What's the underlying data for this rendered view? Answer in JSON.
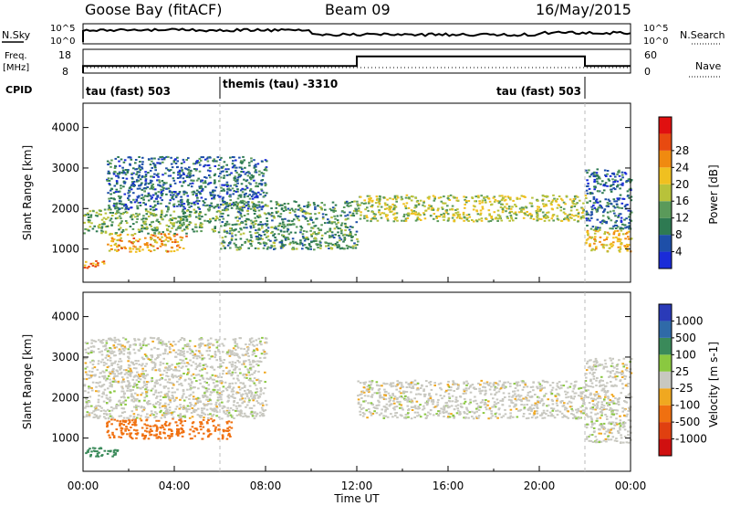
{
  "header": {
    "radar_title": "Goose Bay (fitACF)",
    "beam": "Beam 09",
    "date": "16/May/2015"
  },
  "noise_panel": {
    "left_label": "N.Sky",
    "right_label": "N.Search",
    "tick_top": "10^5",
    "tick_bottom": "10^0",
    "right_tick_top": "10^5",
    "right_tick_bottom": "10^0"
  },
  "freq_panel": {
    "left_label_line1": "Freq.",
    "left_label_line2": "[MHz]",
    "tick_top": "18",
    "tick_bottom": "8",
    "right_label": "Nave",
    "right_tick_top": "60",
    "right_tick_bottom": "0"
  },
  "cpid": {
    "label": "CPID",
    "segments": [
      {
        "start_hour": 0,
        "text": "tau (fast) 503"
      },
      {
        "start_hour": 6,
        "text": "themis (tau) -3310"
      },
      {
        "start_hour": 22,
        "text": "tau (fast) 503",
        "align": "end"
      }
    ]
  },
  "axes": {
    "x_label": "Time UT",
    "x_ticks": [
      "00:00",
      "04:00",
      "08:00",
      "12:00",
      "16:00",
      "20:00",
      "00:00"
    ],
    "y_label": "Slant Range [km]",
    "y_ticks": [
      "1000",
      "2000",
      "3000",
      "4000"
    ]
  },
  "colorbars": {
    "power": {
      "label": "Power [dB]",
      "ticks": [
        "4",
        "8",
        "12",
        "16",
        "20",
        "24",
        "28"
      ],
      "colors": [
        "#1a2bd8",
        "#1e4fa8",
        "#2e7a52",
        "#5a9a5a",
        "#b8c23a",
        "#f0c020",
        "#f08a10",
        "#e84a10",
        "#e01010"
      ]
    },
    "velocity": {
      "label": "Velocity [m s-1]",
      "ticks": [
        "1000",
        "500",
        "100",
        "25",
        "-25",
        "-100",
        "-500",
        "-1000"
      ],
      "colors": [
        "#2a3ab8",
        "#2f6aa8",
        "#3a8a5a",
        "#8ac840",
        "#c8c8c0",
        "#f0a820",
        "#f07010",
        "#e04010",
        "#d01010"
      ]
    }
  },
  "chart_data": {
    "type": "heatmap",
    "x_range_hours": [
      0,
      24
    ],
    "y_range_km": [
      180,
      4600
    ],
    "beam": 9,
    "frequency_mhz": [
      {
        "from_hour": 0,
        "to_hour": 12,
        "value": 11
      },
      {
        "from_hour": 12,
        "to_hour": 22,
        "value": 15
      },
      {
        "from_hour": 22,
        "to_hour": 24,
        "value": 11
      }
    ],
    "power_regions": [
      {
        "t0": 0.0,
        "t1": 1.0,
        "r0": 550,
        "r1": 750,
        "dB": 26
      },
      {
        "t0": 1.0,
        "t1": 4.5,
        "r0": 950,
        "r1": 1400,
        "dB": 24
      },
      {
        "t0": 0.0,
        "t1": 6.0,
        "r0": 1400,
        "r1": 2000,
        "dB": 14
      },
      {
        "t0": 1.0,
        "t1": 8.0,
        "r0": 2000,
        "r1": 3300,
        "dB": 8
      },
      {
        "t0": 6.0,
        "t1": 12.0,
        "r0": 1000,
        "r1": 2200,
        "dB": 12
      },
      {
        "t0": 12.0,
        "t1": 22.0,
        "r0": 1700,
        "r1": 2350,
        "dB": 18
      },
      {
        "t0": 22.0,
        "t1": 24.0,
        "r0": 950,
        "r1": 1500,
        "dB": 22
      },
      {
        "t0": 22.0,
        "t1": 24.0,
        "r0": 1500,
        "r1": 3000,
        "dB": 8
      }
    ],
    "velocity_regions": [
      {
        "t0": 0.0,
        "t1": 1.5,
        "r0": 550,
        "r1": 800,
        "v": 200
      },
      {
        "t0": 1.0,
        "t1": 6.5,
        "r0": 1000,
        "r1": 1500,
        "v": -300
      },
      {
        "t0": 0.0,
        "t1": 8.0,
        "r0": 1500,
        "r1": 3500,
        "v": 0
      },
      {
        "t0": 12.0,
        "t1": 22.0,
        "r0": 1500,
        "r1": 2450,
        "v": 0
      },
      {
        "t0": 22.0,
        "t1": 24.0,
        "r0": 900,
        "r1": 3000,
        "v": 0
      }
    ]
  }
}
